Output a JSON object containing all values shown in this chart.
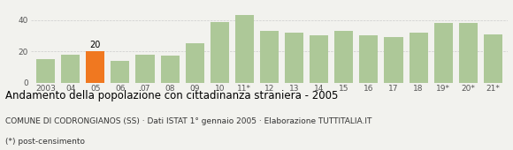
{
  "categories": [
    "2003",
    "04",
    "05",
    "06",
    "07",
    "08",
    "09",
    "10",
    "11*",
    "12",
    "13",
    "14",
    "15",
    "16",
    "17",
    "18",
    "19*",
    "20*",
    "21*"
  ],
  "values": [
    15,
    18,
    20,
    14,
    18,
    17,
    25,
    39,
    43,
    33,
    32,
    30,
    33,
    30,
    29,
    32,
    38,
    38,
    31
  ],
  "highlight_index": 2,
  "highlight_value": 20,
  "bar_color": "#adc898",
  "highlight_color": "#f07820",
  "title": "Andamento della popolazione con cittadinanza straniera - 2005",
  "subtitle": "COMUNE DI CODRONGIANOS (SS) · Dati ISTAT 1° gennaio 2005 · Elaborazione TUTTITALIA.IT",
  "footnote": "(*) post-censimento",
  "ylim": [
    0,
    50
  ],
  "yticks": [
    0,
    20,
    40
  ],
  "background_color": "#f2f2ee",
  "grid_color": "#cccccc",
  "title_fontsize": 8.5,
  "subtitle_fontsize": 6.5,
  "footnote_fontsize": 6.5
}
